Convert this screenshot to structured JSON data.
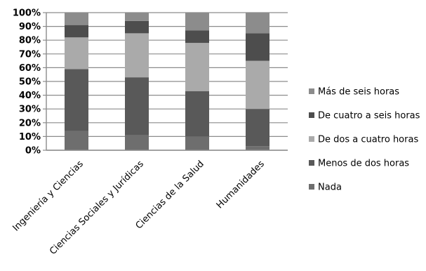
{
  "chart_data": {
    "type": "bar",
    "stacked": true,
    "percent": true,
    "categories": [
      "Ingeniería y Ciencias",
      "Ciencias Sociales y Jurídicas",
      "Ciencias de la Salud",
      "Humanidades"
    ],
    "series": [
      {
        "name": "Nada",
        "values": [
          14,
          11,
          10,
          3
        ],
        "color": "#6e6e6e"
      },
      {
        "name": "Menos de dos horas",
        "values": [
          45,
          42,
          33,
          27
        ],
        "color": "#595959"
      },
      {
        "name": "De dos a cuatro horas",
        "values": [
          23,
          32,
          35,
          35
        ],
        "color": "#aaaaaa"
      },
      {
        "name": "De cuatro a seis horas",
        "values": [
          9,
          9,
          9,
          20
        ],
        "color": "#4d4d4d"
      },
      {
        "name": "Más de seis horas",
        "values": [
          9,
          6,
          13,
          15
        ],
        "color": "#8c8c8c"
      }
    ],
    "y_ticks": [
      "0%",
      "10%",
      "20%",
      "30%",
      "40%",
      "50%",
      "60%",
      "70%",
      "80%",
      "90%",
      "100%"
    ],
    "ylim": [
      0,
      100
    ],
    "grid": true,
    "legend": "right"
  }
}
